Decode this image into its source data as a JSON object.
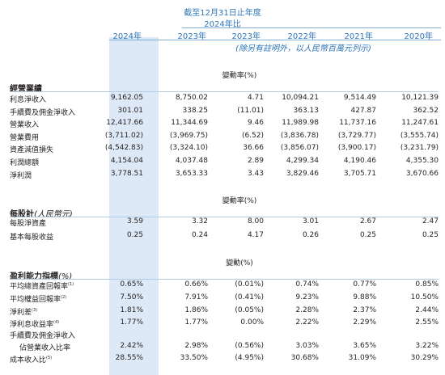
{
  "header": {
    "period": "截至12月31日止年度",
    "compare": "2024年比",
    "years": [
      "2024年",
      "2023年",
      "2023年",
      "2022年",
      "2021年",
      "2020年"
    ],
    "note": "(除另有註明外，以人民幣百萬元列示)"
  },
  "sections": {
    "operations": {
      "title": "經營業績",
      "change_label": "變動率(%)",
      "rows": [
        {
          "label": "利息淨收入",
          "values": [
            "9,162.05",
            "8,750.02",
            "4.71",
            "10,094.21",
            "9,514.49",
            "10,121.39"
          ]
        },
        {
          "label": "手續費及佣金淨收入",
          "values": [
            "301.01",
            "338.25",
            "(11.01)",
            "363.13",
            "427.87",
            "362.52"
          ]
        },
        {
          "label": "營業收入",
          "values": [
            "12,417.66",
            "11,344.69",
            "9.46",
            "11,989.98",
            "11,737.16",
            "11,247.61"
          ]
        },
        {
          "label": "營業費用",
          "values": [
            "(3,711.02)",
            "(3,969.75)",
            "(6.52)",
            "(3,836.78)",
            "(3,729.77)",
            "(3,555.74)"
          ]
        },
        {
          "label": "資產減值損失",
          "values": [
            "(4,542.83)",
            "(3,324.10)",
            "36.66",
            "(3,856.07)",
            "(3,900.17)",
            "(3,231.79)"
          ]
        },
        {
          "label": "利潤總額",
          "values": [
            "4,154.04",
            "4,037.48",
            "2.89",
            "4,299.34",
            "4,190.46",
            "4,355.30"
          ]
        },
        {
          "label": "淨利潤",
          "values": [
            "3,778.51",
            "3,653.33",
            "3.43",
            "3,829.46",
            "3,705.71",
            "3,670.66"
          ]
        }
      ]
    },
    "per_share": {
      "title": "每股計",
      "unit": "(人民幣元)",
      "change_label": "變動率(%)",
      "rows": [
        {
          "label": "每股淨資產",
          "values": [
            "3.59",
            "3.32",
            "8.00",
            "3.01",
            "2.67",
            "2.47"
          ]
        },
        {
          "label": "基本每股收益",
          "values": [
            "0.25",
            "0.24",
            "4.17",
            "0.26",
            "0.25",
            "0.25"
          ]
        }
      ]
    },
    "profitability": {
      "title": "盈利能力指標",
      "unit": "(%)",
      "change_label": "變動(%)",
      "rows": [
        {
          "label": "平均總資產回報率",
          "note": "(1)",
          "values": [
            "0.65%",
            "0.66%",
            "(0.01%)",
            "0.74%",
            "0.77%",
            "0.85%"
          ]
        },
        {
          "label": "平均權益回報率",
          "note": "(2)",
          "values": [
            "7.50%",
            "7.91%",
            "(0.41%)",
            "9.23%",
            "9.88%",
            "10.50%"
          ]
        },
        {
          "label": "淨利差",
          "note": "(3)",
          "values": [
            "1.81%",
            "1.86%",
            "(0.05%)",
            "2.28%",
            "2.37%",
            "2.44%"
          ]
        },
        {
          "label": "淨利息收益率",
          "note": "(4)",
          "values": [
            "1.77%",
            "1.77%",
            "0.00%",
            "2.22%",
            "2.29%",
            "2.55%"
          ]
        },
        {
          "label": "手續費及佣金淨收入",
          "note": "",
          "values": [
            "",
            "",
            "",
            "",
            "",
            ""
          ]
        },
        {
          "label": "佔營業收入比率",
          "note": "",
          "values": [
            "2.42%",
            "2.98%",
            "(0.56%)",
            "3.03%",
            "3.65%",
            "3.22%"
          ]
        },
        {
          "label": "成本收入比",
          "note": "(5)",
          "values": [
            "28.55%",
            "33.50%",
            "(4.95%)",
            "30.68%",
            "31.09%",
            "30.29%"
          ]
        }
      ]
    }
  }
}
